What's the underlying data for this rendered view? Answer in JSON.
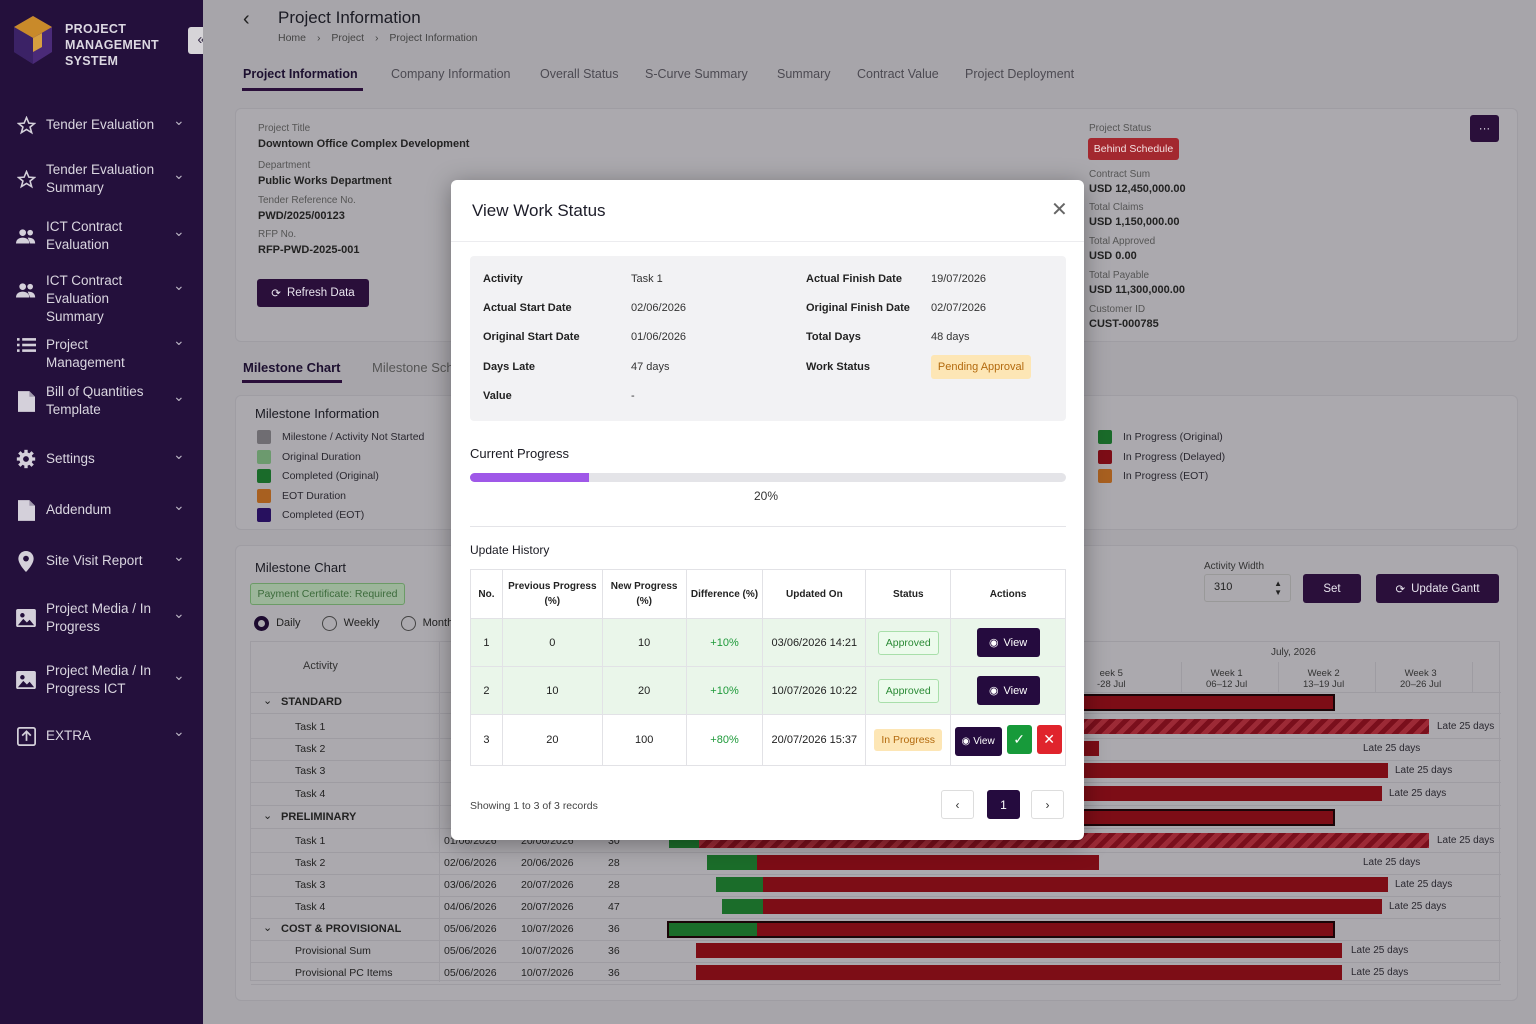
{
  "app": {
    "brand_line1": "PROJECT",
    "brand_line2": "MANAGEMENT",
    "brand_line3": "SYSTEM",
    "collapse_icon": "double-chevron-left-icon"
  },
  "sidebar": {
    "items": [
      {
        "label": "Tender Evaluation",
        "icon": "star-icon"
      },
      {
        "label": "Tender Evaluation Summary",
        "icon": "star-icon"
      },
      {
        "label": "ICT Contract Evaluation",
        "icon": "users-icon"
      },
      {
        "label": "ICT Contract Evaluation Summary",
        "icon": "users-icon"
      },
      {
        "label": "Project Management",
        "icon": "list-icon"
      },
      {
        "label": "Bill of Quantities Template",
        "icon": "document-icon"
      },
      {
        "label": "Settings",
        "icon": "gear-icon"
      },
      {
        "label": "Addendum",
        "icon": "document-icon"
      },
      {
        "label": "Site Visit Report",
        "icon": "pin-icon"
      },
      {
        "label": "Project Media / In Progress",
        "icon": "image-icon"
      },
      {
        "label": "Project Media / In Progress ICT",
        "icon": "image-icon"
      },
      {
        "label": "EXTRA",
        "icon": "upload-icon"
      }
    ]
  },
  "header": {
    "title": "Project Information",
    "breadcrumb": [
      "Home",
      "Project",
      "Project Information"
    ]
  },
  "tabs": [
    "Project Information",
    "Company Information",
    "Overall Status",
    "S-Curve Summary",
    "Summary",
    "Contract Value",
    "Project Deployment"
  ],
  "project": {
    "title_label": "Project Title",
    "title": "Downtown Office Complex Development",
    "dept_label": "Department",
    "dept": "Public Works Department",
    "tender_label": "Tender Reference No.",
    "tender": "PWD/2025/00123",
    "rfp_label": "RFP No.",
    "rfp": "RFP-PWD-2025-001",
    "refresh": "Refresh Data",
    "status_label": "Project Status",
    "status": "Behind Schedule",
    "contract_sum_label": "Contract Sum",
    "contract_sum": "USD 12,450,000.00",
    "claims_label": "Total Claims",
    "claims": "USD 1,150,000.00",
    "approved_label": "Total Approved",
    "approved": "USD 0.00",
    "payable_label": "Total Payable",
    "payable": "USD 11,300,000.00",
    "customer_label": "Customer ID",
    "customer": "CUST-000785",
    "more": "···"
  },
  "subtabs": [
    "Milestone Chart",
    "Milestone Sch"
  ],
  "milestone_info": {
    "title": "Milestone Information",
    "legend": [
      {
        "label": "Milestone / Activity Not Started",
        "color": "#6f6d72"
      },
      {
        "label": "Original Duration",
        "color": "#6c9a6e"
      },
      {
        "label": "Completed (Original)",
        "color": "#1a6b2a"
      },
      {
        "label": "EOT Duration",
        "color": "#a86020"
      },
      {
        "label": "Completed (EOT)",
        "color": "#27105e"
      },
      {
        "label": "In Progress (Original)",
        "color": "#1a6b2a"
      },
      {
        "label": "In Progress (Delayed)",
        "color": "#7d0d16"
      },
      {
        "label": "In Progress (EOT)",
        "color": "#a86020"
      }
    ]
  },
  "milestone_chart": {
    "title": "Milestone Chart",
    "payment": "Payment Certificate: Required",
    "views": [
      "Daily",
      "Weekly",
      "Monthly"
    ],
    "activity_width_label": "Activity Width",
    "activity_width": "310",
    "set": "Set",
    "update": "Update Gantt",
    "activity_header": "Activity",
    "month": "July, 2026",
    "weeks": [
      {
        "w": "eek 5",
        "d": "-28 Jul"
      },
      {
        "w": "Week 1",
        "d": "06–12 Jul"
      },
      {
        "w": "Week 2",
        "d": "13–19 Jul"
      },
      {
        "w": "Week 3",
        "d": "20–26 Jul"
      }
    ],
    "rows": [
      {
        "type": "group",
        "name": "STANDARD"
      },
      {
        "name": "Task 1",
        "late": "Late 25 days"
      },
      {
        "name": "Task 2",
        "late": "Late 25 days"
      },
      {
        "name": "Task 3",
        "late": "Late 25 days"
      },
      {
        "name": "Task 4",
        "late": "Late 25 days"
      },
      {
        "type": "group",
        "name": "PRELIMINARY"
      },
      {
        "name": "Task 1",
        "start": "01/06/2026",
        "end": "20/06/2026",
        "days": "30",
        "late": "Late 25 days"
      },
      {
        "name": "Task 2",
        "start": "02/06/2026",
        "end": "20/06/2026",
        "days": "28",
        "late": "Late 25 days"
      },
      {
        "name": "Task 3",
        "start": "03/06/2026",
        "end": "20/07/2026",
        "days": "28",
        "late": "Late 25 days"
      },
      {
        "name": "Task 4",
        "start": "04/06/2026",
        "end": "20/07/2026",
        "days": "47",
        "late": "Late 25 days"
      },
      {
        "type": "group",
        "name": "COST & PROVISIONAL",
        "start": "05/06/2026",
        "end": "10/07/2026",
        "days": "36"
      },
      {
        "name": "Provisional Sum",
        "start": "05/06/2026",
        "end": "10/07/2026",
        "days": "36",
        "late": "Late 25 days"
      },
      {
        "name": "Provisional PC Items",
        "start": "05/06/2026",
        "end": "10/07/2026",
        "days": "36",
        "late": "Late 25 days"
      }
    ]
  },
  "modal": {
    "title": "View Work Status",
    "fields": {
      "activity_label": "Activity",
      "activity": "Task 1",
      "actual_start_label": "Actual Start Date",
      "actual_start": "02/06/2026",
      "original_start_label": "Original Start Date",
      "original_start": "01/06/2026",
      "days_late_label": "Days Late",
      "days_late": "47 days",
      "value_label": "Value",
      "value": "-",
      "actual_finish_label": "Actual Finish Date",
      "actual_finish": "19/07/2026",
      "original_finish_label": "Original Finish Date",
      "original_finish": "02/07/2026",
      "total_days_label": "Total Days",
      "total_days": "48 days",
      "work_status_label": "Work Status",
      "work_status": "Pending Approval"
    },
    "progress_title": "Current Progress",
    "progress_value": 0.2,
    "progress_text": "20%",
    "history_title": "Update History",
    "columns": [
      "No.",
      "Previous Progress (%)",
      "New Progress (%)",
      "Difference (%)",
      "Updated On",
      "Status",
      "Actions"
    ],
    "rows": [
      {
        "no": "1",
        "prev": "0",
        "new": "10",
        "diff": "+10%",
        "on": "03/06/2026 14:21",
        "status": "Approved",
        "action": "View"
      },
      {
        "no": "2",
        "prev": "10",
        "new": "20",
        "diff": "+10%",
        "on": "10/07/2026 10:22",
        "status": "Approved",
        "action": "View"
      },
      {
        "no": "3",
        "prev": "20",
        "new": "100",
        "diff": "+80%",
        "on": "20/07/2026 15:37",
        "status": "In Progress",
        "action": "View"
      }
    ],
    "showing": "Showing 1 to 3 of 3 records",
    "page": "1"
  }
}
